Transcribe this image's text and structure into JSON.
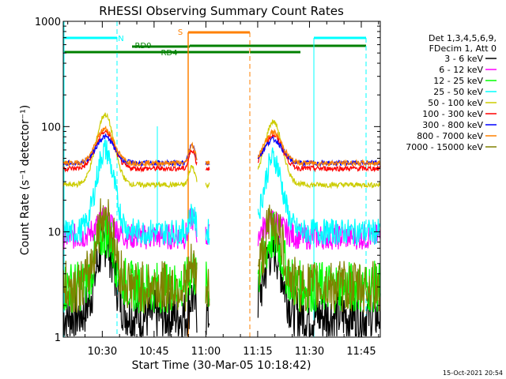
{
  "chart_data": {
    "type": "line",
    "title": "RHESSI Observing Summary Count Rates",
    "xlabel": "Start Time (30-Mar-05 10:18:42)",
    "ylabel": "Count Rate (s⁻¹ detector⁻¹)",
    "yscale": "log",
    "ylim": [
      1,
      1000
    ],
    "xlim_minutes": [
      618.7,
      710.5
    ],
    "x_ticks": [
      {
        "label": "10:30",
        "minute": 630
      },
      {
        "label": "10:45",
        "minute": 645
      },
      {
        "label": "11:00",
        "minute": 660
      },
      {
        "label": "11:15",
        "minute": 675
      },
      {
        "label": "11:30",
        "minute": 690
      },
      {
        "label": "11:45",
        "minute": 705
      }
    ],
    "y_ticks": [
      {
        "label": "1",
        "value": 1
      },
      {
        "label": "10",
        "value": 10
      },
      {
        "label": "100",
        "value": 100
      },
      {
        "label": "1000",
        "value": 1000
      }
    ],
    "legend_header": [
      "Det 1,3,4,5,6,9,",
      "FDecim 1, Att 0"
    ],
    "legend_position": "right",
    "series": [
      {
        "name": "3 - 6 keV",
        "color": "#000000",
        "level": 1.6,
        "peak": 8
      },
      {
        "name": "6 - 12 keV",
        "color": "#ff00ff",
        "level": 9,
        "peak": 13
      },
      {
        "name": "12 - 25 keV",
        "color": "#00ff00",
        "level": 3.0,
        "peak": 10
      },
      {
        "name": "25 - 50 keV",
        "color": "#00ffff",
        "level": 10,
        "peak": 60
      },
      {
        "name": "50 - 100 keV",
        "color": "#cccc00",
        "level": 28,
        "peak": 130
      },
      {
        "name": "100 - 300 keV",
        "color": "#ff0000",
        "level": 40,
        "peak": 90
      },
      {
        "name": "300 - 800 keV",
        "color": "#0000ff",
        "level": 45,
        "peak": 80
      },
      {
        "name": "800 - 7000 keV",
        "color": "#ff8000",
        "level": 45,
        "peak": 95
      },
      {
        "name": "7000 - 15000 keV",
        "color": "#808000",
        "level": 3.0,
        "peak": 15
      }
    ],
    "data_gaps_minutes": [
      [
        657.5,
        659.8
      ],
      [
        661.0,
        675.0
      ]
    ],
    "annotations": [
      {
        "label": "N",
        "color": "#00ffff"
      },
      {
        "label": "S",
        "color": "#ff8000"
      },
      {
        "label": "RD0",
        "color": "#008000"
      },
      {
        "label": "RD4",
        "color": "#008000"
      }
    ],
    "footer_date": "15-Oct-2021 20:54"
  }
}
